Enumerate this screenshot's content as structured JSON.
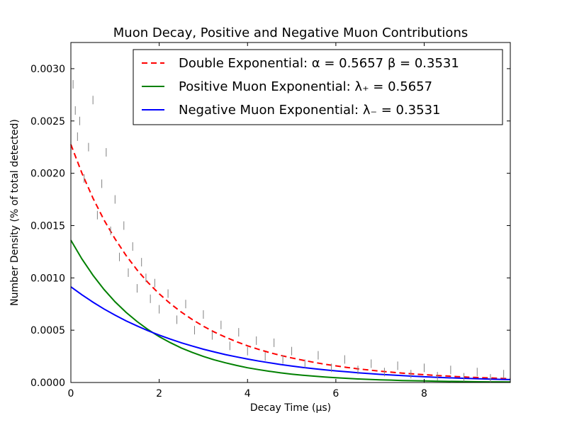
{
  "chart_data": {
    "type": "line",
    "title": "Muon Decay, Positive and Negative Muon Contributions",
    "xlabel": "Decay Time  (μs)",
    "ylabel": "Number Density (% of total detected)",
    "xlim": [
      0,
      9.95
    ],
    "ylim": [
      0,
      0.00325
    ],
    "x_ticks": [
      0,
      2,
      4,
      6,
      8
    ],
    "x_tick_labels": [
      "0",
      "2",
      "4",
      "6",
      "8"
    ],
    "y_ticks": [
      0,
      0.0005,
      0.001,
      0.0015,
      0.002,
      0.0025,
      0.003
    ],
    "y_tick_labels": [
      "0.0000",
      "0.0005",
      "0.0010",
      "0.0015",
      "0.0020",
      "0.0025",
      "0.0030"
    ],
    "legend_position": "top-right",
    "series": [
      {
        "name": "Double Exponential: α = 0.5657   β = 0.3531",
        "kind": "line",
        "style": "dashed",
        "color": "#ff0000",
        "x": [
          0,
          0.25,
          0.5,
          0.75,
          1,
          1.25,
          1.5,
          1.75,
          2,
          2.25,
          2.5,
          2.75,
          3,
          3.25,
          3.5,
          3.75,
          4,
          4.25,
          4.5,
          4.75,
          5,
          5.25,
          5.5,
          5.75,
          6,
          6.25,
          6.5,
          6.75,
          7,
          7.25,
          7.5,
          7.75,
          8,
          8.25,
          8.5,
          8.75,
          9,
          9.25,
          9.5,
          9.75,
          9.95
        ],
        "y": [
          0.002275,
          0.002001,
          0.001762,
          0.001554,
          0.001373,
          0.001214,
          0.001075,
          0.000954,
          0.000848,
          0.000755,
          0.000673,
          0.000601,
          0.000538,
          0.000482,
          0.000433,
          0.00039,
          0.000351,
          0.000317,
          0.000286,
          0.000259,
          0.000235,
          0.000213,
          0.000193,
          0.000175,
          0.000159,
          0.000144,
          0.000131,
          0.000119,
          0.000108,
          9.9e-05,
          9e-05,
          8.2e-05,
          7.5e-05,
          6.8e-05,
          6.2e-05,
          5.6e-05,
          5.1e-05,
          4.7e-05,
          4.3e-05,
          3.9e-05,
          3.6e-05
        ]
      },
      {
        "name": "Positive Muon Exponential: λ₊ = 0.5657",
        "kind": "line",
        "style": "solid",
        "color": "#008000",
        "x": [
          0,
          0.25,
          0.5,
          0.75,
          1,
          1.25,
          1.5,
          1.75,
          2,
          2.25,
          2.5,
          2.75,
          3,
          3.25,
          3.5,
          3.75,
          4,
          4.25,
          4.5,
          4.75,
          5,
          5.25,
          5.5,
          5.75,
          6,
          6.25,
          6.5,
          6.75,
          7,
          7.25,
          7.5,
          7.75,
          8,
          8.25,
          8.5,
          8.75,
          9,
          9.25,
          9.5,
          9.75,
          9.95
        ],
        "y": [
          0.00136,
          0.001181,
          0.001025,
          0.00089,
          0.000772,
          0.00067,
          0.000582,
          0.000505,
          0.000438,
          0.000381,
          0.00033,
          0.000287,
          0.000249,
          0.000216,
          0.000188,
          0.000163,
          0.000141,
          0.000123,
          0.000107,
          9.2e-05,
          8e-05,
          7e-05,
          6.1e-05,
          5.3e-05,
          4.6e-05,
          4e-05,
          3.4e-05,
          3e-05,
          2.6e-05,
          2.3e-05,
          1.9e-05,
          1.7e-05,
          1.5e-05,
          1.3e-05,
          1.1e-05,
          1e-05,
          8e-06,
          7e-06,
          6e-06,
          6e-06,
          5e-06
        ]
      },
      {
        "name": "Negative Muon Exponential: λ₋  = 0.3531",
        "kind": "line",
        "style": "solid",
        "color": "#0000ff",
        "x": [
          0,
          0.25,
          0.5,
          0.75,
          1,
          1.25,
          1.5,
          1.75,
          2,
          2.25,
          2.5,
          2.75,
          3,
          3.25,
          3.5,
          3.75,
          4,
          4.25,
          4.5,
          4.75,
          5,
          5.25,
          5.5,
          5.75,
          6,
          6.25,
          6.5,
          6.75,
          7,
          7.25,
          7.5,
          7.75,
          8,
          8.25,
          8.5,
          8.75,
          9,
          9.25,
          9.5,
          9.75,
          9.95
        ],
        "y": [
          0.000915,
          0.000838,
          0.000768,
          0.000703,
          0.000644,
          0.000589,
          0.00054,
          0.000494,
          0.000453,
          0.000415,
          0.00038,
          0.000348,
          0.000318,
          0.000292,
          0.000267,
          0.000245,
          0.000224,
          0.000205,
          0.000188,
          0.000172,
          0.000158,
          0.000144,
          0.000132,
          0.000121,
          0.000111,
          0.000102,
          9.3e-05,
          8.5e-05,
          7.8e-05,
          7.2e-05,
          6.6e-05,
          6e-05,
          5.5e-05,
          5e-05,
          4.6e-05,
          4.2e-05,
          3.9e-05,
          3.5e-05,
          3.2e-05,
          3e-05,
          2.8e-05
        ]
      },
      {
        "name": "",
        "kind": "scatter",
        "marker": "vertical-tick",
        "color": "#808080",
        "x": [
          0.05,
          0.1,
          0.15,
          0.2,
          0.3,
          0.4,
          0.5,
          0.6,
          0.7,
          0.8,
          0.9,
          1.0,
          1.1,
          1.2,
          1.3,
          1.4,
          1.5,
          1.6,
          1.7,
          1.8,
          1.9,
          2.0,
          2.2,
          2.4,
          2.6,
          2.8,
          3.0,
          3.2,
          3.4,
          3.6,
          3.8,
          4.0,
          4.2,
          4.4,
          4.6,
          4.8,
          5.0,
          5.3,
          5.6,
          5.9,
          6.2,
          6.5,
          6.8,
          7.1,
          7.4,
          7.7,
          8.0,
          8.3,
          8.6,
          8.9,
          9.2,
          9.5,
          9.8
        ],
        "y": [
          0.00285,
          0.0026,
          0.00235,
          0.0025,
          0.00195,
          0.00225,
          0.0027,
          0.0016,
          0.0019,
          0.0022,
          0.00145,
          0.00175,
          0.0012,
          0.0015,
          0.00105,
          0.0013,
          0.0009,
          0.00115,
          0.001,
          0.0008,
          0.00095,
          0.0007,
          0.00085,
          0.0006,
          0.00075,
          0.0005,
          0.00065,
          0.00045,
          0.00055,
          0.00035,
          0.00048,
          0.0003,
          0.0004,
          0.00025,
          0.00038,
          0.00022,
          0.0003,
          0.00018,
          0.00026,
          0.00014,
          0.00022,
          0.00012,
          0.00018,
          0.0001,
          0.00016,
          8e-05,
          0.00014,
          6e-05,
          0.00012,
          5e-05,
          0.0001,
          4e-05,
          8e-05
        ]
      }
    ]
  }
}
